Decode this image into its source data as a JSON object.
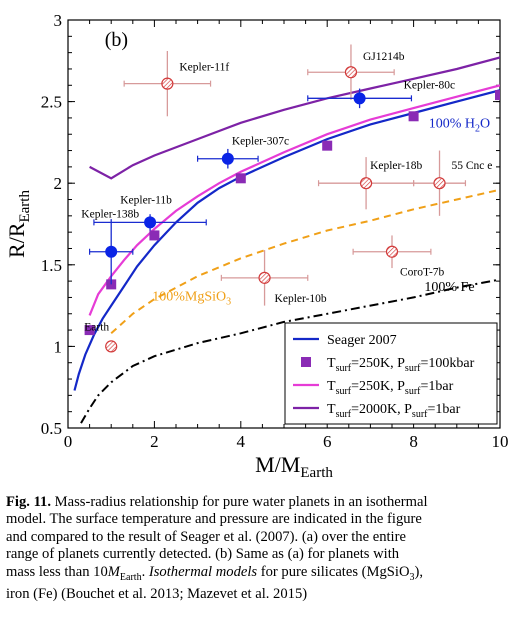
{
  "chart_data": {
    "type": "scatter",
    "panel_label": "(b)",
    "xlabel_main": "M/M",
    "xlabel_sub": "Earth",
    "ylabel_main": "R/R",
    "ylabel_sub": "Earth",
    "xlim": [
      0,
      10
    ],
    "ylim": [
      0.5,
      3
    ],
    "xticks": [
      0,
      2,
      4,
      6,
      8,
      10
    ],
    "yticks": [
      0.5,
      1,
      1.5,
      2,
      2.5,
      3
    ],
    "xtick_labels": [
      "0",
      "2",
      "4",
      "6",
      "8",
      "10"
    ],
    "ytick_labels": [
      "0.5",
      "1",
      "1.5",
      "2",
      "2.5",
      "3"
    ],
    "curves": {
      "seager_2007": {
        "color": "#1428c8",
        "x": [
          0.15,
          0.25,
          0.4,
          0.6,
          0.8,
          1.0,
          1.3,
          1.6,
          2.0,
          2.5,
          3.0,
          3.5,
          4.0,
          5.0,
          6.0,
          7.0,
          8.0,
          9.0,
          10.0
        ],
        "y": [
          0.73,
          0.83,
          0.95,
          1.07,
          1.17,
          1.25,
          1.37,
          1.49,
          1.62,
          1.76,
          1.88,
          1.97,
          2.04,
          2.16,
          2.27,
          2.36,
          2.43,
          2.5,
          2.57
        ]
      },
      "t250k_1bar": {
        "color": "#e63cd6",
        "x": [
          0.5,
          0.7,
          1.0,
          1.3,
          1.6,
          2.0,
          2.5,
          3.0,
          3.5,
          4.0,
          5.0,
          6.0,
          7.0,
          8.0,
          9.0,
          10.0
        ],
        "y": [
          1.19,
          1.32,
          1.43,
          1.53,
          1.62,
          1.72,
          1.83,
          1.92,
          2.0,
          2.07,
          2.19,
          2.3,
          2.39,
          2.46,
          2.53,
          2.6
        ]
      },
      "t2000k_1bar": {
        "color": "#7d22a6",
        "x": [
          0.5,
          1.0,
          1.5,
          2.0,
          3.0,
          4.0,
          5.0,
          6.0,
          7.0,
          8.0,
          9.0,
          10.0
        ],
        "y": [
          2.1,
          2.03,
          2.11,
          2.17,
          2.27,
          2.37,
          2.45,
          2.52,
          2.58,
          2.64,
          2.7,
          2.77
        ]
      },
      "mgsio3": {
        "color": "#f0a018",
        "x": [
          1.0,
          1.5,
          2.0,
          3.0,
          4.0,
          5.0,
          6.0,
          7.0,
          8.0,
          9.0,
          10.0
        ],
        "y": [
          1.08,
          1.2,
          1.29,
          1.43,
          1.54,
          1.63,
          1.71,
          1.77,
          1.84,
          1.9,
          1.96
        ]
      },
      "fe": {
        "color": "#000000",
        "x": [
          0.3,
          0.5,
          0.7,
          1.0,
          1.5,
          2.0,
          3.0,
          4.0,
          5.0,
          6.0,
          7.0,
          8.0,
          9.0,
          10.0
        ],
        "y": [
          0.53,
          0.62,
          0.7,
          0.78,
          0.88,
          0.94,
          1.02,
          1.08,
          1.15,
          1.2,
          1.25,
          1.3,
          1.36,
          1.41
        ]
      }
    },
    "squares_t250k_100kbar": {
      "color": "#8a2bb5",
      "x": [
        0.5,
        1.0,
        2.0,
        4.0,
        6.0,
        8.0,
        10.0
      ],
      "y": [
        1.1,
        1.38,
        1.68,
        2.03,
        2.23,
        2.41,
        2.54
      ]
    },
    "planets_observed": [
      {
        "name": "Kepler-138b",
        "x": 1.0,
        "y": 1.58,
        "xerr": 0.5,
        "yerr": 0.2
      },
      {
        "name": "Kepler-11b",
        "x": 1.9,
        "y": 1.76,
        "xerr": 1.3,
        "yerr": 0.05
      },
      {
        "name": "Kepler-307c",
        "x": 3.7,
        "y": 2.15,
        "xerr": 0.7,
        "yerr": 0.06
      },
      {
        "name": "Kepler-80c",
        "x": 6.75,
        "y": 2.52,
        "xerr": 1.2,
        "yerr": 0.06
      }
    ],
    "planets_hatched": [
      {
        "name": "Earth",
        "x": 1.0,
        "y": 1.0,
        "xerr": 0,
        "yerr": 0
      },
      {
        "name": "Kepler-11f",
        "x": 2.3,
        "y": 2.61,
        "xerr": 1.0,
        "yerr": 0.2
      },
      {
        "name": "GJ1214b",
        "x": 6.55,
        "y": 2.68,
        "xerr": 1.0,
        "yerr": 0.17
      },
      {
        "name": "Kepler-18b",
        "x": 6.9,
        "y": 2.0,
        "xerr": 1.1,
        "yerr": 0.16
      },
      {
        "name": "55 Cnc e",
        "x": 8.6,
        "y": 2.0,
        "xerr": 0.6,
        "yerr": 0.2
      },
      {
        "name": "Kepler-10b",
        "x": 4.55,
        "y": 1.42,
        "xerr": 1.0,
        "yerr": 0.17
      },
      {
        "name": "CoroT-7b",
        "x": 7.5,
        "y": 1.58,
        "xerr": 0.9,
        "yerr": 0.1
      }
    ],
    "annotations": {
      "h2o_label": "100% H",
      "h2o_sub": "2",
      "h2o_end": "O",
      "mgsio3_label": "100%MgSiO",
      "mgsio3_sub": "3",
      "fe_label": "100% Fe"
    },
    "legend": {
      "placement": "bottom-right",
      "entries": [
        {
          "kind": "line",
          "color": "#1428c8",
          "parts": [
            "Seager 2007"
          ]
        },
        {
          "kind": "square",
          "color": "#8a2bb5",
          "parts": [
            "T",
            "surf",
            "=250K, P",
            "surf",
            "=100kbar"
          ]
        },
        {
          "kind": "line",
          "color": "#e63cd6",
          "parts": [
            "T",
            "surf",
            "=250K, P",
            "surf",
            "=1bar"
          ]
        },
        {
          "kind": "line",
          "color": "#7d22a6",
          "parts": [
            "T",
            "surf",
            "=2000K, P",
            "surf",
            "=1bar"
          ]
        }
      ]
    }
  },
  "caption": {
    "fig_label": "Fig. 11.",
    "l1": "Mass-radius relationship for pure water planets in an isothermal",
    "l2": "model. The surface temperature and pressure are indicated in the figure",
    "l3": "and compared to the result of Seager et al. (2007). (a) over the entire",
    "l4": "range of planets currently detected. (b) Same as (a) for planets with",
    "l5a": "mass less than 10",
    "l5m": "M",
    "l5sub": "Earth",
    "l5b": ". ",
    "l5i": "Isothermal models",
    "l5c": " for pure silicates (MgSiO",
    "l5sub2": "3",
    "l5d": "),",
    "l6": "iron (Fe) (Bouchet et al. 2013; Mazevet et al. 2015)"
  }
}
